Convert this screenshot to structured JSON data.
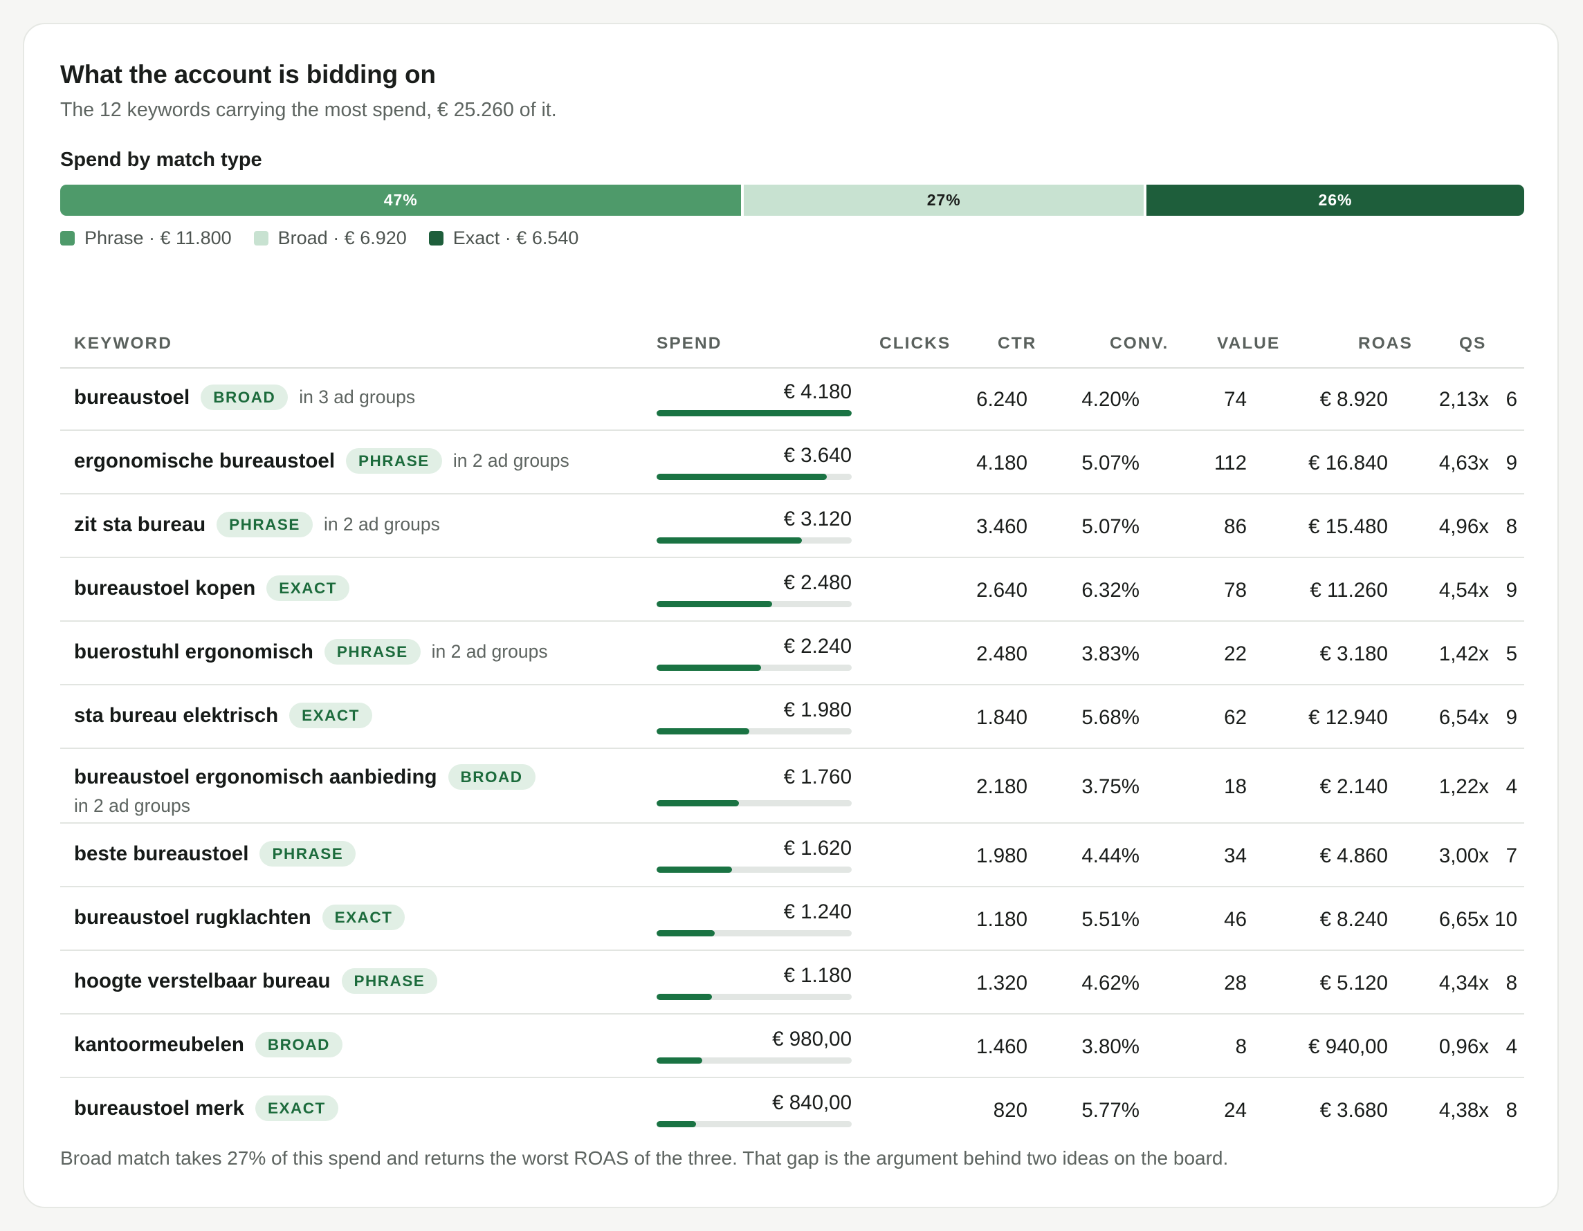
{
  "header": {
    "title": "What the account is bidding on",
    "subtitle": "The 12 keywords carrying the most spend, € 25.260 of it."
  },
  "match_type": {
    "label": "Spend by match type",
    "segments": [
      {
        "pct_label": "47%",
        "share": 0.467,
        "color": "#4e9a6a",
        "text_color": "#ffffff"
      },
      {
        "pct_label": "27%",
        "share": 0.274,
        "color": "#c8e2d1",
        "text_color": "#1a1d1b"
      },
      {
        "pct_label": "26%",
        "share": 0.259,
        "color": "#1e5e3b",
        "text_color": "#ffffff"
      }
    ],
    "legend": [
      {
        "label": "Phrase · € 11.800",
        "color": "#4e9a6a"
      },
      {
        "label": "Broad · € 6.920",
        "color": "#c8e2d1"
      },
      {
        "label": "Exact · € 6.540",
        "color": "#1e5e3b"
      }
    ]
  },
  "table": {
    "columns": {
      "keyword": "KEYWORD",
      "spend": "SPEND",
      "clicks": "CLICKS",
      "ctr": "CTR",
      "conv": "CONV.",
      "value": "VALUE",
      "roas": "ROAS",
      "qs": "QS"
    },
    "rows": [
      {
        "keyword": "bureaustoel",
        "match": "BROAD",
        "groups": "in 3 ad groups",
        "spend": "€ 4.180",
        "spend_share": 1.0,
        "clicks": "6.240",
        "ctr": "4.20%",
        "conv": "74",
        "value": "€ 8.920",
        "roas": "2,13x",
        "qs": "6"
      },
      {
        "keyword": "ergonomische bureaustoel",
        "match": "PHRASE",
        "groups": "in 2 ad groups",
        "spend": "€ 3.640",
        "spend_share": 0.871,
        "clicks": "4.180",
        "ctr": "5.07%",
        "conv": "112",
        "value": "€ 16.840",
        "roas": "4,63x",
        "qs": "9"
      },
      {
        "keyword": "zit sta bureau",
        "match": "PHRASE",
        "groups": "in 2 ad groups",
        "spend": "€ 3.120",
        "spend_share": 0.746,
        "clicks": "3.460",
        "ctr": "5.07%",
        "conv": "86",
        "value": "€ 15.480",
        "roas": "4,96x",
        "qs": "8"
      },
      {
        "keyword": "bureaustoel kopen",
        "match": "EXACT",
        "groups": "",
        "spend": "€ 2.480",
        "spend_share": 0.593,
        "clicks": "2.640",
        "ctr": "6.32%",
        "conv": "78",
        "value": "€ 11.260",
        "roas": "4,54x",
        "qs": "9"
      },
      {
        "keyword": "buerostuhl ergonomisch",
        "match": "PHRASE",
        "groups": "in 2 ad groups",
        "spend": "€ 2.240",
        "spend_share": 0.536,
        "clicks": "2.480",
        "ctr": "3.83%",
        "conv": "22",
        "value": "€ 3.180",
        "roas": "1,42x",
        "qs": "5"
      },
      {
        "keyword": "sta bureau elektrisch",
        "match": "EXACT",
        "groups": "",
        "spend": "€ 1.980",
        "spend_share": 0.474,
        "clicks": "1.840",
        "ctr": "5.68%",
        "conv": "62",
        "value": "€ 12.940",
        "roas": "6,54x",
        "qs": "9"
      },
      {
        "keyword": "bureaustoel ergonomisch aanbieding",
        "match": "BROAD",
        "groups": "in 2 ad groups",
        "wrap_groups": true,
        "spend": "€ 1.760",
        "spend_share": 0.421,
        "clicks": "2.180",
        "ctr": "3.75%",
        "conv": "18",
        "value": "€ 2.140",
        "roas": "1,22x",
        "qs": "4"
      },
      {
        "keyword": "beste bureaustoel",
        "match": "PHRASE",
        "groups": "",
        "spend": "€ 1.620",
        "spend_share": 0.388,
        "clicks": "1.980",
        "ctr": "4.44%",
        "conv": "34",
        "value": "€ 4.860",
        "roas": "3,00x",
        "qs": "7"
      },
      {
        "keyword": "bureaustoel rugklachten",
        "match": "EXACT",
        "groups": "",
        "spend": "€ 1.240",
        "spend_share": 0.297,
        "clicks": "1.180",
        "ctr": "5.51%",
        "conv": "46",
        "value": "€ 8.240",
        "roas": "6,65x",
        "qs": "10"
      },
      {
        "keyword": "hoogte verstelbaar bureau",
        "match": "PHRASE",
        "groups": "",
        "spend": "€ 1.180",
        "spend_share": 0.282,
        "clicks": "1.320",
        "ctr": "4.62%",
        "conv": "28",
        "value": "€ 5.120",
        "roas": "4,34x",
        "qs": "8"
      },
      {
        "keyword": "kantoormeubelen",
        "match": "BROAD",
        "groups": "",
        "spend": "€ 980,00",
        "spend_share": 0.234,
        "clicks": "1.460",
        "ctr": "3.80%",
        "conv": "8",
        "value": "€ 940,00",
        "roas": "0,96x",
        "qs": "4"
      },
      {
        "keyword": "bureaustoel merk",
        "match": "EXACT",
        "groups": "",
        "spend": "€ 840,00",
        "spend_share": 0.201,
        "clicks": "820",
        "ctr": "5.77%",
        "conv": "24",
        "value": "€ 3.680",
        "roas": "4,38x",
        "qs": "8"
      }
    ]
  },
  "footnote": "Broad match takes 27% of this spend and returns the worst ROAS of the three. That gap is the argument behind two ideas on the board."
}
